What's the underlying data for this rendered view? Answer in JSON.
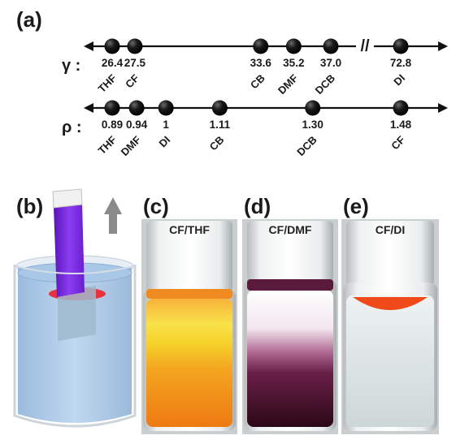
{
  "panels": {
    "a": "(a)",
    "b": "(b)",
    "c": "(c)",
    "d": "(d)",
    "e": "(e)"
  },
  "gamma_scale": {
    "symbol": "γ :",
    "values": [
      26.4,
      27.5,
      33.6,
      35.2,
      37.0,
      72.8
    ],
    "value_labels": [
      "26.4",
      "27.5",
      "33.6",
      "35.2",
      "37.0",
      "72.8"
    ],
    "solvents": [
      "THF",
      "CF",
      "CB",
      "DMF",
      "DCB",
      "DI"
    ],
    "axis_break": "//"
  },
  "rho_scale": {
    "symbol": "ρ :",
    "values": [
      0.89,
      0.94,
      1.0,
      1.11,
      1.3,
      1.48
    ],
    "value_labels": [
      "0.89",
      "0.94",
      "1",
      "1.11",
      "1.30",
      "1.48"
    ],
    "solvents": [
      "THF",
      "DMF",
      "DI",
      "CB",
      "DCB",
      "CF"
    ]
  },
  "vials": [
    {
      "label": "CF/THF"
    },
    {
      "label": "CF/DMF"
    },
    {
      "label": "CF/DI"
    }
  ],
  "colors": {
    "axis": "#111111",
    "dot": "#141414",
    "stamp_purple": "#7a2bd6",
    "water_blue": "#a9c8e8",
    "film_red": "#e8313a",
    "arrow_gray": "#8a8a8a",
    "thf_orange": "#f08a18",
    "thf_yellow": "#f6d32a",
    "dmf_purple": "#3a0d22",
    "di_clear": "#dfe6e6",
    "di_film": "#f04a18"
  }
}
